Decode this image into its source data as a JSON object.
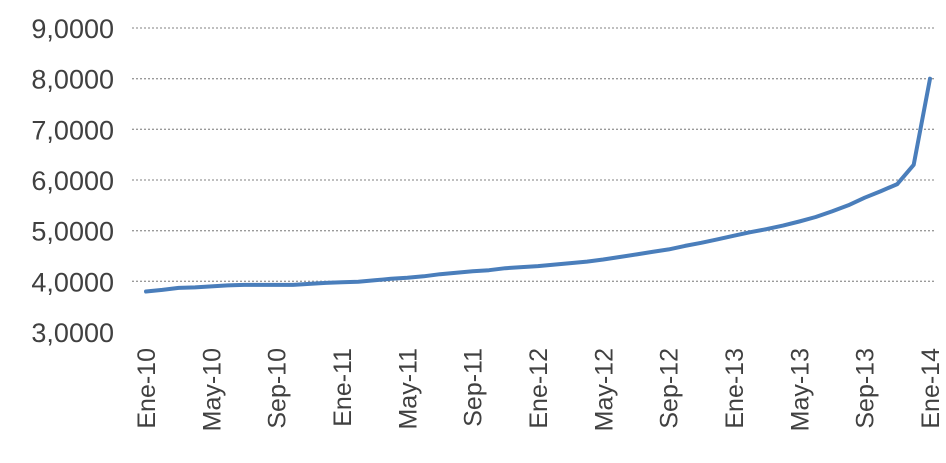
{
  "chart_data": {
    "type": "line",
    "title": "",
    "xlabel": "",
    "ylabel": "",
    "ylim": [
      3.0,
      9.0
    ],
    "yticks": [
      "3,0000",
      "4,0000",
      "5,0000",
      "6,0000",
      "7,0000",
      "8,0000",
      "9,0000"
    ],
    "ytick_values": [
      3,
      4,
      5,
      6,
      7,
      8,
      9
    ],
    "grid": "horizontal dotted",
    "legend": "none",
    "x_tick_labels": [
      "Ene-10",
      "May-10",
      "Sep-10",
      "Ene-11",
      "May-11",
      "Sep-11",
      "Ene-12",
      "May-12",
      "Sep-12",
      "Ene-13",
      "May-13",
      "Sep-13",
      "Ene-14"
    ],
    "series": [
      {
        "color": "#4a7ebb",
        "x": [
          "Ene-10",
          "Feb-10",
          "Mar-10",
          "Abr-10",
          "May-10",
          "Jun-10",
          "Jul-10",
          "Ago-10",
          "Sep-10",
          "Oct-10",
          "Nov-10",
          "Dic-10",
          "Ene-11",
          "Feb-11",
          "Mar-11",
          "Abr-11",
          "May-11",
          "Jun-11",
          "Jul-11",
          "Ago-11",
          "Sep-11",
          "Oct-11",
          "Nov-11",
          "Dic-11",
          "Ene-12",
          "Feb-12",
          "Mar-12",
          "Abr-12",
          "May-12",
          "Jun-12",
          "Jul-12",
          "Ago-12",
          "Sep-12",
          "Oct-12",
          "Nov-12",
          "Dic-12",
          "Ene-13",
          "Feb-13",
          "Mar-13",
          "Abr-13",
          "May-13",
          "Jun-13",
          "Jul-13",
          "Ago-13",
          "Sep-13",
          "Oct-13",
          "Nov-13",
          "Dic-13",
          "Ene-14"
        ],
        "values": [
          3.8,
          3.83,
          3.87,
          3.88,
          3.9,
          3.92,
          3.93,
          3.93,
          3.93,
          3.93,
          3.95,
          3.97,
          3.98,
          3.99,
          4.02,
          4.05,
          4.07,
          4.1,
          4.14,
          4.17,
          4.2,
          4.22,
          4.26,
          4.28,
          4.3,
          4.33,
          4.36,
          4.39,
          4.43,
          4.48,
          4.53,
          4.58,
          4.63,
          4.7,
          4.76,
          4.83,
          4.9,
          4.97,
          5.03,
          5.1,
          5.18,
          5.27,
          5.38,
          5.5,
          5.65,
          5.78,
          5.92,
          6.3,
          8.0
        ]
      }
    ]
  }
}
